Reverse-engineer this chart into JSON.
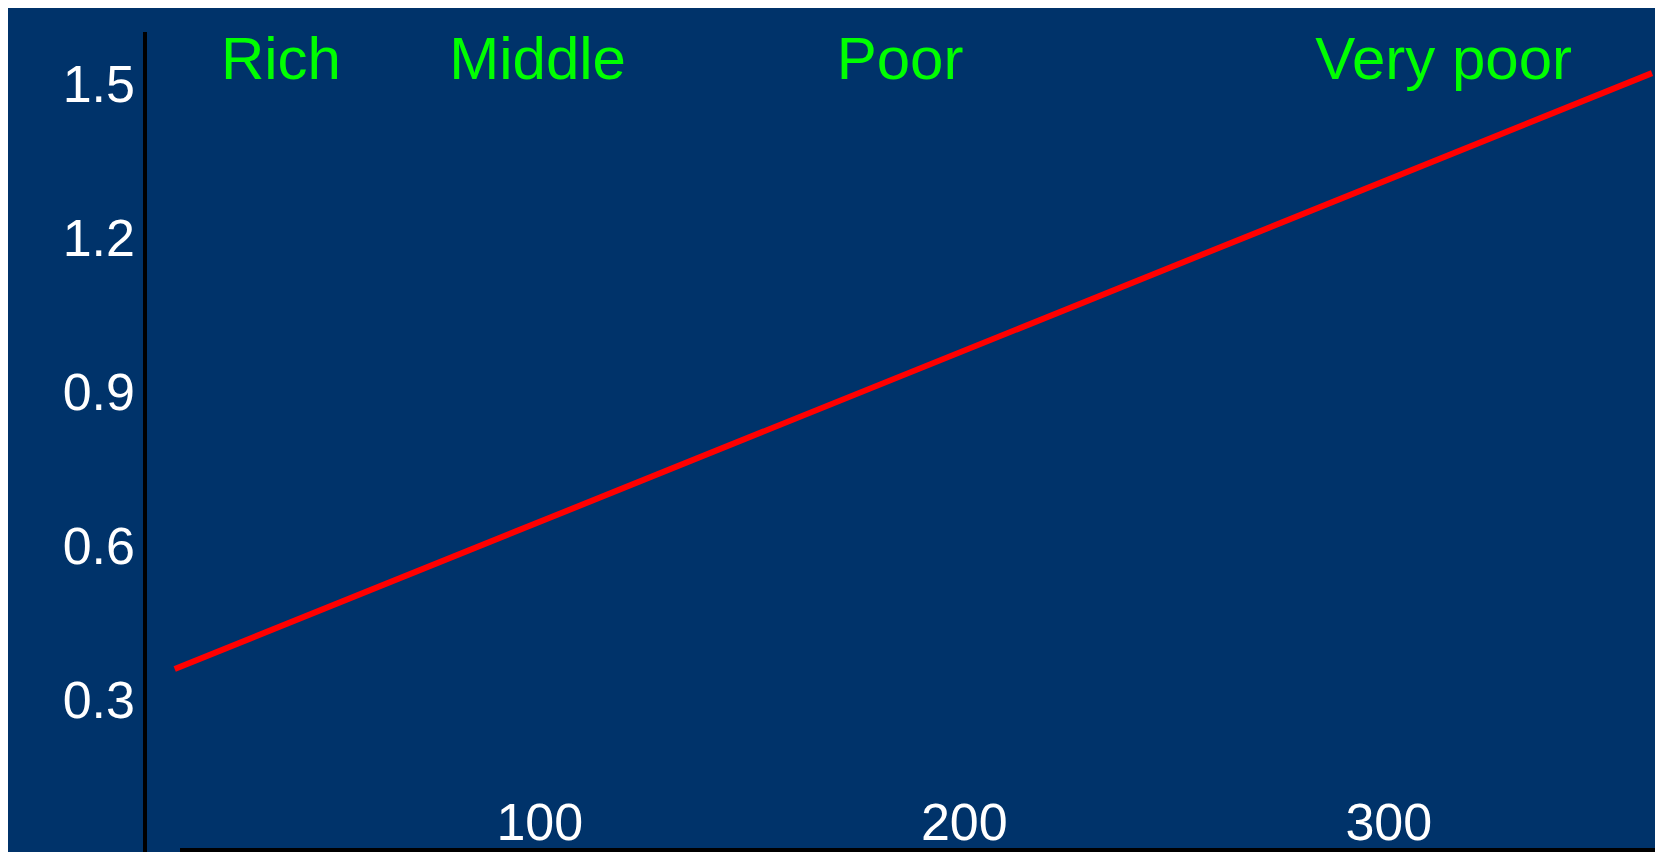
{
  "chart_data": {
    "type": "line",
    "x": [
      14,
      362
    ],
    "series": [
      {
        "color": "#ff0000",
        "values": [
          0.36,
          1.52
        ]
      }
    ],
    "xlim": [
      7,
      362
    ],
    "xticks": [
      100,
      200,
      300
    ],
    "ylim": [
      0,
      1.6
    ],
    "yticks": [
      0.3,
      0.6,
      0.9,
      1.2,
      1.5
    ],
    "annotations": [
      "Rich",
      "Middle",
      "Poor",
      "Very poor"
    ],
    "grid": false,
    "marker": "none",
    "line_style": "solid"
  }
}
